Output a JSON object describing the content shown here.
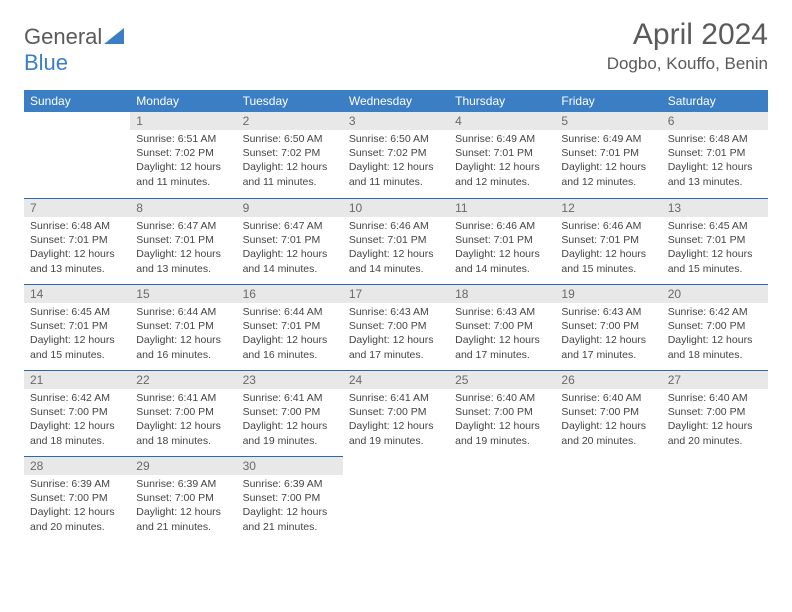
{
  "brand": {
    "general": "General",
    "blue": "Blue"
  },
  "title": "April 2024",
  "location": "Dogbo, Kouffo, Benin",
  "weekdays": [
    "Sunday",
    "Monday",
    "Tuesday",
    "Wednesday",
    "Thursday",
    "Friday",
    "Saturday"
  ],
  "colors": {
    "header_bg": "#3b7ec4",
    "header_text": "#ffffff",
    "daynum_bg": "#e8e8e8",
    "daynum_text": "#6a6a6a",
    "body_text": "#444444",
    "title_text": "#5a5a5a",
    "row_border": "#2a6aa8"
  },
  "typography": {
    "title_fontsize": 30,
    "location_fontsize": 17,
    "weekday_fontsize": 12,
    "daynum_fontsize": 12,
    "body_fontsize": 10.5
  },
  "layout": {
    "columns": 7,
    "rows": 5,
    "start_offset": 1,
    "days_in_month": 30
  },
  "days": {
    "1": {
      "sunrise": "6:51 AM",
      "sunset": "7:02 PM",
      "daylight": "12 hours and 11 minutes."
    },
    "2": {
      "sunrise": "6:50 AM",
      "sunset": "7:02 PM",
      "daylight": "12 hours and 11 minutes."
    },
    "3": {
      "sunrise": "6:50 AM",
      "sunset": "7:02 PM",
      "daylight": "12 hours and 11 minutes."
    },
    "4": {
      "sunrise": "6:49 AM",
      "sunset": "7:01 PM",
      "daylight": "12 hours and 12 minutes."
    },
    "5": {
      "sunrise": "6:49 AM",
      "sunset": "7:01 PM",
      "daylight": "12 hours and 12 minutes."
    },
    "6": {
      "sunrise": "6:48 AM",
      "sunset": "7:01 PM",
      "daylight": "12 hours and 13 minutes."
    },
    "7": {
      "sunrise": "6:48 AM",
      "sunset": "7:01 PM",
      "daylight": "12 hours and 13 minutes."
    },
    "8": {
      "sunrise": "6:47 AM",
      "sunset": "7:01 PM",
      "daylight": "12 hours and 13 minutes."
    },
    "9": {
      "sunrise": "6:47 AM",
      "sunset": "7:01 PM",
      "daylight": "12 hours and 14 minutes."
    },
    "10": {
      "sunrise": "6:46 AM",
      "sunset": "7:01 PM",
      "daylight": "12 hours and 14 minutes."
    },
    "11": {
      "sunrise": "6:46 AM",
      "sunset": "7:01 PM",
      "daylight": "12 hours and 14 minutes."
    },
    "12": {
      "sunrise": "6:46 AM",
      "sunset": "7:01 PM",
      "daylight": "12 hours and 15 minutes."
    },
    "13": {
      "sunrise": "6:45 AM",
      "sunset": "7:01 PM",
      "daylight": "12 hours and 15 minutes."
    },
    "14": {
      "sunrise": "6:45 AM",
      "sunset": "7:01 PM",
      "daylight": "12 hours and 15 minutes."
    },
    "15": {
      "sunrise": "6:44 AM",
      "sunset": "7:01 PM",
      "daylight": "12 hours and 16 minutes."
    },
    "16": {
      "sunrise": "6:44 AM",
      "sunset": "7:01 PM",
      "daylight": "12 hours and 16 minutes."
    },
    "17": {
      "sunrise": "6:43 AM",
      "sunset": "7:00 PM",
      "daylight": "12 hours and 17 minutes."
    },
    "18": {
      "sunrise": "6:43 AM",
      "sunset": "7:00 PM",
      "daylight": "12 hours and 17 minutes."
    },
    "19": {
      "sunrise": "6:43 AM",
      "sunset": "7:00 PM",
      "daylight": "12 hours and 17 minutes."
    },
    "20": {
      "sunrise": "6:42 AM",
      "sunset": "7:00 PM",
      "daylight": "12 hours and 18 minutes."
    },
    "21": {
      "sunrise": "6:42 AM",
      "sunset": "7:00 PM",
      "daylight": "12 hours and 18 minutes."
    },
    "22": {
      "sunrise": "6:41 AM",
      "sunset": "7:00 PM",
      "daylight": "12 hours and 18 minutes."
    },
    "23": {
      "sunrise": "6:41 AM",
      "sunset": "7:00 PM",
      "daylight": "12 hours and 19 minutes."
    },
    "24": {
      "sunrise": "6:41 AM",
      "sunset": "7:00 PM",
      "daylight": "12 hours and 19 minutes."
    },
    "25": {
      "sunrise": "6:40 AM",
      "sunset": "7:00 PM",
      "daylight": "12 hours and 19 minutes."
    },
    "26": {
      "sunrise": "6:40 AM",
      "sunset": "7:00 PM",
      "daylight": "12 hours and 20 minutes."
    },
    "27": {
      "sunrise": "6:40 AM",
      "sunset": "7:00 PM",
      "daylight": "12 hours and 20 minutes."
    },
    "28": {
      "sunrise": "6:39 AM",
      "sunset": "7:00 PM",
      "daylight": "12 hours and 20 minutes."
    },
    "29": {
      "sunrise": "6:39 AM",
      "sunset": "7:00 PM",
      "daylight": "12 hours and 21 minutes."
    },
    "30": {
      "sunrise": "6:39 AM",
      "sunset": "7:00 PM",
      "daylight": "12 hours and 21 minutes."
    }
  },
  "labels": {
    "sunrise": "Sunrise:",
    "sunset": "Sunset:",
    "daylight": "Daylight:"
  }
}
